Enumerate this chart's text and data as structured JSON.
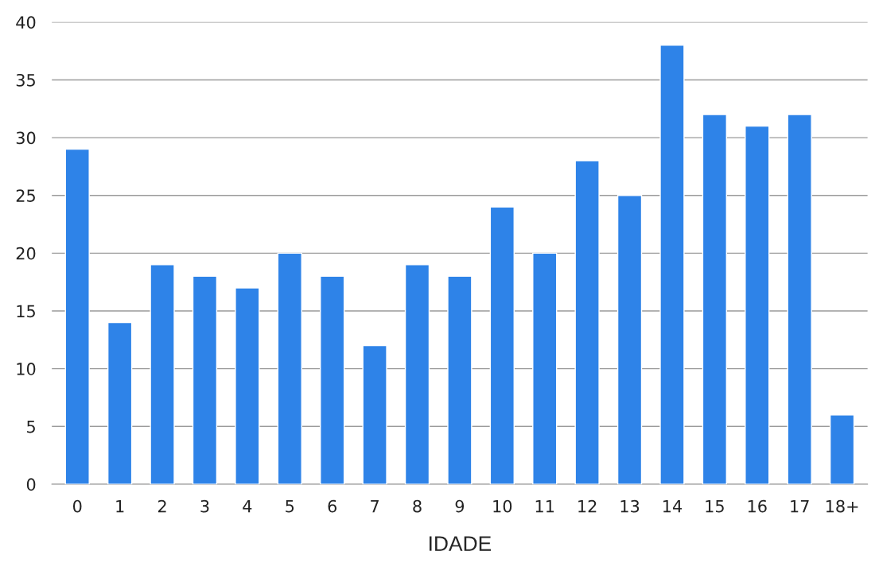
{
  "chart_data": {
    "type": "bar",
    "xlabel": "IDADE",
    "categories": [
      "0",
      "1",
      "2",
      "3",
      "4",
      "5",
      "6",
      "7",
      "8",
      "9",
      "10",
      "11",
      "12",
      "13",
      "14",
      "15",
      "16",
      "17",
      "18+"
    ],
    "values": [
      29,
      14,
      19,
      18,
      17,
      20,
      18,
      12,
      19,
      18,
      24,
      20,
      28,
      25,
      38,
      32,
      31,
      32,
      6
    ],
    "color": "#2e83e8",
    "ylim": [
      0,
      40
    ],
    "yticks": [
      0,
      5,
      10,
      15,
      20,
      25,
      30,
      35,
      40
    ],
    "grid": "y",
    "legend": false
  }
}
